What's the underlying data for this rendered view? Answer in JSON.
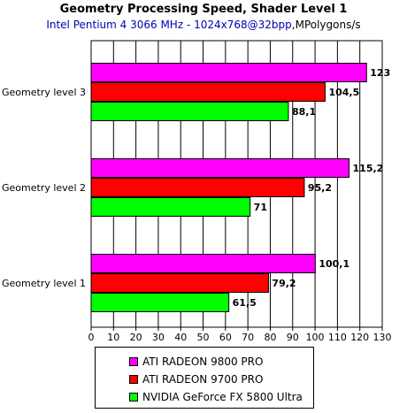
{
  "chart_data": {
    "type": "bar",
    "orientation": "horizontal",
    "title": "Geometry Processing Speed, Shader Level 1",
    "subtitle": "Intel Pentium 4 3066 MHz - 1024x768@32bpp",
    "unit": "MPolygons/s",
    "categories": [
      "Geometry level 3",
      "Geometry level 2",
      "Geometry level 1"
    ],
    "series": [
      {
        "name": "ATI RADEON 9800 PRO",
        "color": "#ff00ff",
        "values": [
          123,
          115.2,
          100.1
        ],
        "labels": [
          "123",
          "115,2",
          "100,1"
        ]
      },
      {
        "name": "ATI RADEON 9700 PRO",
        "color": "#ff0000",
        "values": [
          104.5,
          95.2,
          79.2
        ],
        "labels": [
          "104,5",
          "95,2",
          "79,2"
        ]
      },
      {
        "name": "NVIDIA GeForce FX 5800 Ultra",
        "color": "#00ff00",
        "values": [
          88.1,
          71,
          61.5
        ],
        "labels": [
          "88,1",
          "71",
          "61,5"
        ]
      }
    ],
    "xlim": [
      0,
      130
    ],
    "xticks": [
      "0",
      "10",
      "20",
      "30",
      "40",
      "50",
      "60",
      "70",
      "80",
      "90",
      "100",
      "110",
      "120",
      "130"
    ],
    "grid": true,
    "legend_position": "bottom"
  }
}
